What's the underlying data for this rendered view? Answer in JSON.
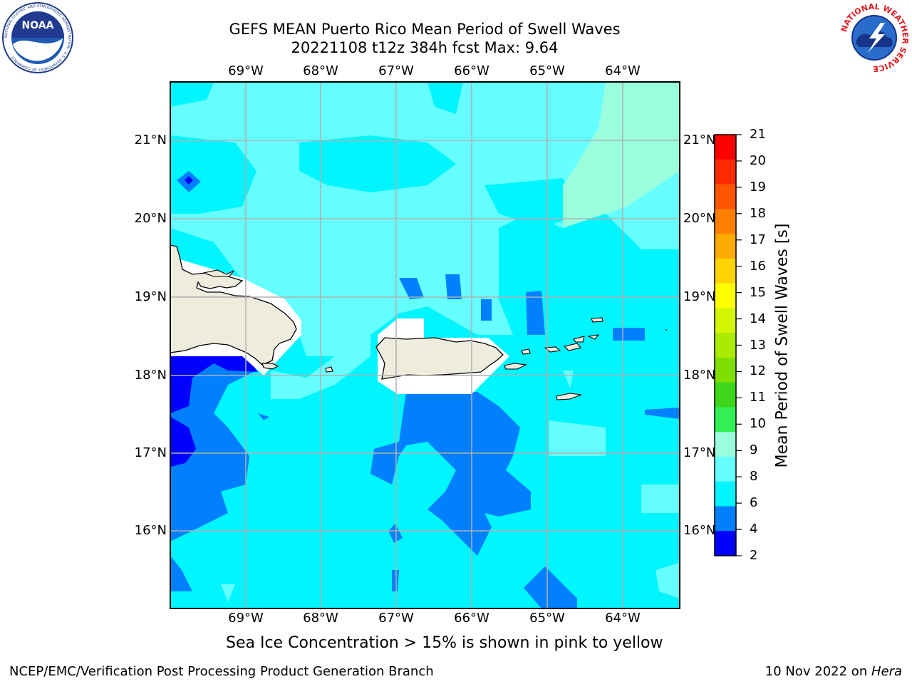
{
  "title": {
    "line1": "GEFS MEAN Puerto Rico Mean Period of Swell Waves",
    "line2": "20221108 t12z 384h fcst   Max: 9.64"
  },
  "map": {
    "lon_labels": [
      "69°W",
      "68°W",
      "67°W",
      "66°W",
      "65°W",
      "64°W"
    ],
    "lat_labels": [
      "21°N",
      "20°N",
      "19°N",
      "18°N",
      "17°N",
      "16°N"
    ],
    "land_color": "#eeecdc",
    "no_data_color": "#ffffff",
    "grid_color": "#b0b0b0",
    "extent": {
      "lon": [
        -70,
        -63.25
      ],
      "lat": [
        15,
        21.75
      ]
    }
  },
  "colorbar": {
    "title": "Mean Period of Swell Waves [s]",
    "ticks": [
      "21",
      "20",
      "19",
      "18",
      "17",
      "16",
      "15",
      "14",
      "13",
      "12",
      "11",
      "10",
      "9",
      "8",
      "6",
      "4",
      "2"
    ],
    "colors": [
      "#ff0000",
      "#ff2a00",
      "#ff5500",
      "#ff7f00",
      "#ffaa00",
      "#ffd400",
      "#ffff00",
      "#d4f500",
      "#aaeb00",
      "#7fe000",
      "#3ed61c",
      "#33ee55",
      "#99ffdd",
      "#66ffff",
      "#00f5ff",
      "#0080ff",
      "#0000ff"
    ]
  },
  "note": "Sea Ice Concentration > 15% is shown in pink to yellow",
  "footer": {
    "left": "NCEP/EMC/Verification Post Processing Product Generation Branch",
    "date": "10 Nov 2022 on ",
    "host": "Hera"
  },
  "logos": {
    "noaa": "NOAA",
    "noaa_ring": "NATIONAL OCEANIC AND ATMOSPHERIC ADMINISTRATION · U.S. DEPARTMENT OF COMMERCE",
    "nws": "NATIONAL WEATHER SERVICE"
  }
}
